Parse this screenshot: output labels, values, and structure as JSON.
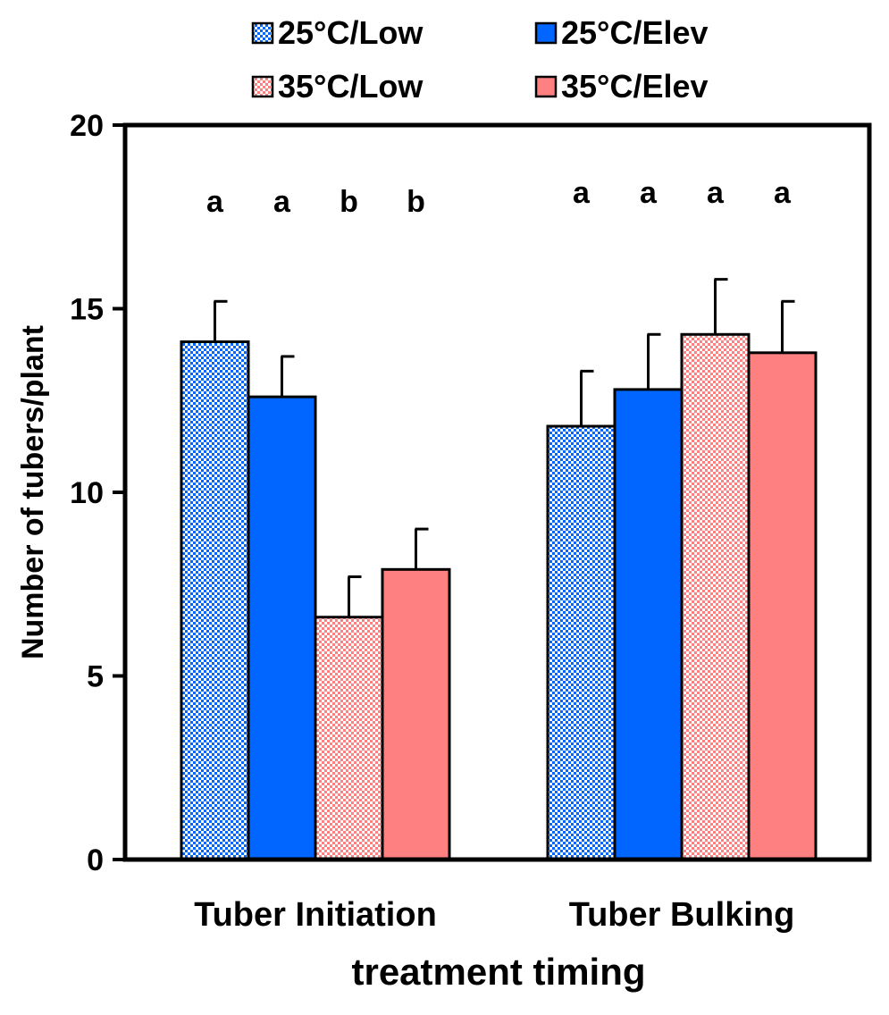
{
  "chart_data": {
    "type": "bar",
    "title": "",
    "xlabel": "treatment timing",
    "ylabel": "Number of tubers/plant",
    "ylim": [
      0,
      20
    ],
    "yticks": [
      0,
      5,
      10,
      15,
      20
    ],
    "grid": false,
    "legend_position": "top",
    "categories": [
      "Tuber Initiation",
      "Tuber Bulking"
    ],
    "series": [
      {
        "name": "25°C/Low",
        "color": "#0066ff",
        "pattern": "checker",
        "values": [
          14.1,
          11.8
        ],
        "errors": [
          1.1,
          1.5
        ],
        "letters": [
          "a",
          "a"
        ]
      },
      {
        "name": "25°C/Elev",
        "color": "#0066ff",
        "pattern": "solid",
        "values": [
          12.6,
          12.8
        ],
        "errors": [
          1.1,
          1.5
        ],
        "letters": [
          "a",
          "a"
        ]
      },
      {
        "name": "35°C/Low",
        "color": "#ff8080",
        "pattern": "checker",
        "values": [
          6.6,
          14.3
        ],
        "errors": [
          1.1,
          1.5
        ],
        "letters": [
          "b",
          "a"
        ]
      },
      {
        "name": "35°C/Elev",
        "color": "#ff8080",
        "pattern": "solid",
        "values": [
          7.9,
          13.8
        ],
        "errors": [
          1.1,
          1.4
        ],
        "letters": [
          "b",
          "a"
        ]
      }
    ]
  }
}
